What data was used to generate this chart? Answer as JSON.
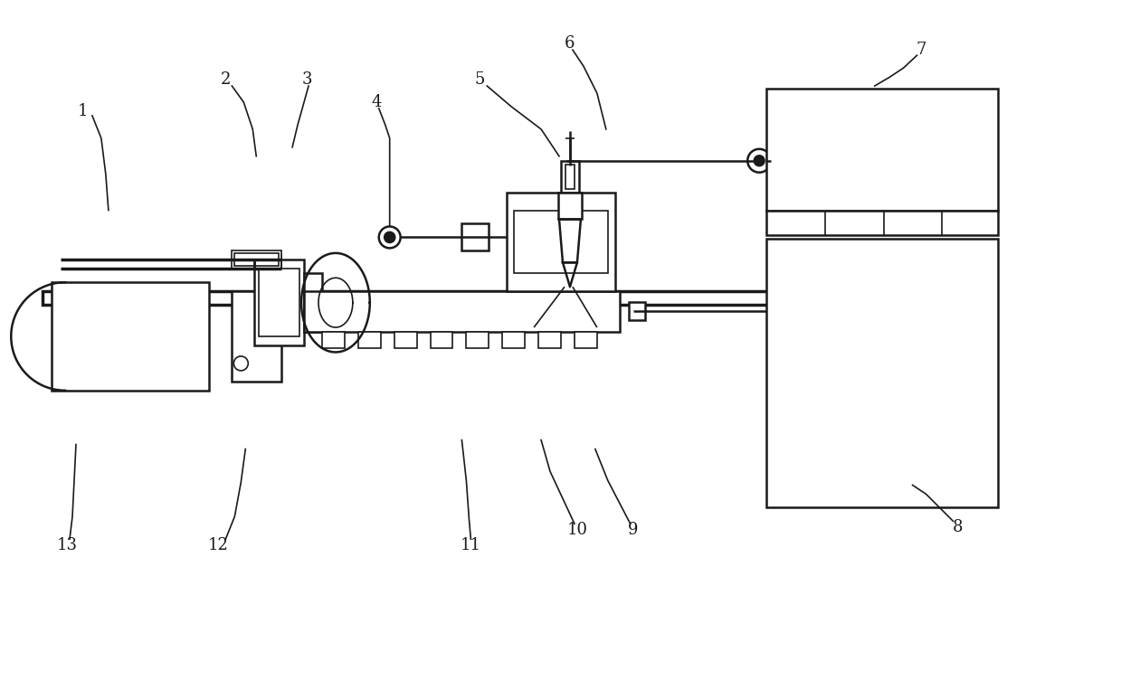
{
  "bg_color": "#ffffff",
  "line_color": "#1a1a1a",
  "lw_thin": 1.2,
  "lw_med": 1.8,
  "lw_thick": 2.5,
  "fig_width": 12.39,
  "fig_height": 7.52
}
